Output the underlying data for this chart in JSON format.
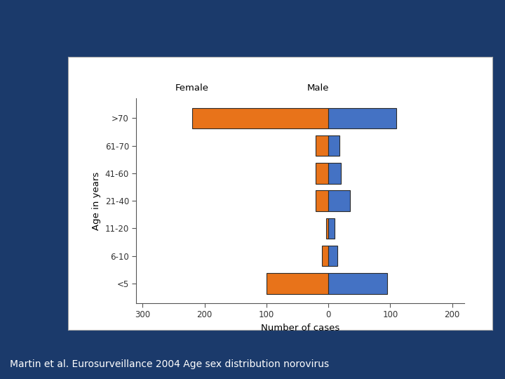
{
  "age_groups": [
    "<5",
    "6-10",
    "11-20",
    "21-40",
    "41-60",
    "61-70",
    ">70"
  ],
  "female_values": [
    100,
    10,
    3,
    20,
    20,
    20,
    220
  ],
  "male_values": [
    95,
    15,
    10,
    35,
    20,
    18,
    110
  ],
  "female_color": "#E8731A",
  "male_color": "#4472C4",
  "xlabel": "Number of cases",
  "ylabel": "Age in years",
  "label_female": "Female",
  "label_male": "Male",
  "xlim_left": -310,
  "xlim_right": 220,
  "xticks": [
    -300,
    -200,
    -100,
    0,
    100,
    200
  ],
  "xtick_labels": [
    "300",
    "200",
    "100",
    "0",
    "100",
    "200"
  ],
  "bg_color": "#1B3A6B",
  "chart_bg": "#FFFFFF",
  "box_bg": "#FFFFFF",
  "title_text": "Martin et al. Eurosurveillance 2004 Age sex distribution norovirus",
  "title_color": "#FFFFFF",
  "edge_color": "#2B2B2B",
  "tick_color": "#333333"
}
